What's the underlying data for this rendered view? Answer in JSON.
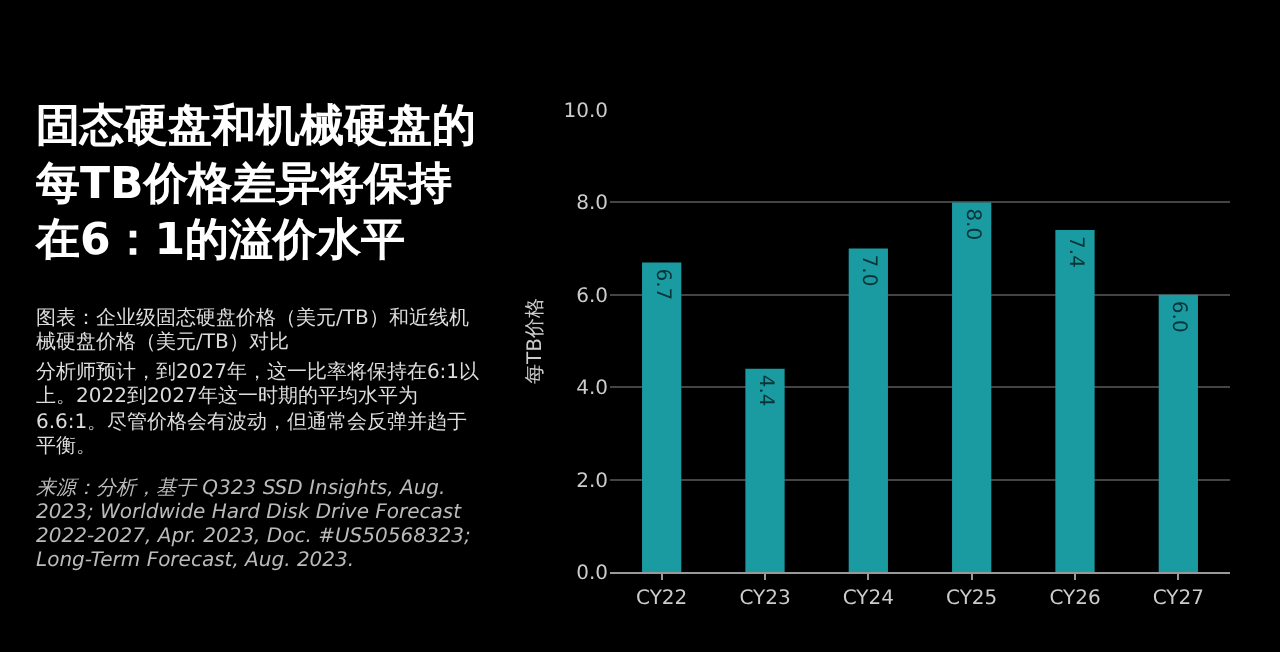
{
  "chart_data": {
    "type": "bar",
    "title": "固态硬盘和机械硬盘的每TB价格差异将保持在6：1的溢价水平",
    "annotations": [
      "图表：企业级固态硬盘价格（美元/TB）和近线机械硬盘价格（美元/TB）对比",
      "分析师预计，到2027年，这一比率将保持在6:1以上。2022到2027年这一时期的平均水平为6.6:1。尽管价格会有波动，但通常会反弹并趋于平衡。",
      "来源：分析，基于 Q323 SSD Insights, Aug. 2023; Worldwide Hard Disk Drive Forecast 2022-2027, Apr. 2023, Doc. #US50568323; Long-Term Forecast, Aug. 2023."
    ],
    "ylabel": "每TB价格",
    "categories": [
      "CY22",
      "CY23",
      "CY24",
      "CY25",
      "CY26",
      "CY27"
    ],
    "values": [
      6.7,
      4.4,
      7.0,
      8.0,
      7.4,
      6.0
    ],
    "value_labels": [
      "6.7",
      "4.4",
      "7.0",
      "8.0",
      "7.4",
      "6.0"
    ],
    "color": "#1a9ba1",
    "ylim": [
      0,
      10
    ],
    "yticks": [
      {
        "value": 0,
        "label": "0.0"
      },
      {
        "value": 2,
        "label": "2.0"
      },
      {
        "value": 4,
        "label": "4.0"
      },
      {
        "value": 6,
        "label": "6.0"
      },
      {
        "value": 8,
        "label": "8.0"
      },
      {
        "value": 10,
        "label": "10.0"
      }
    ],
    "grid": "y",
    "legend": false
  }
}
